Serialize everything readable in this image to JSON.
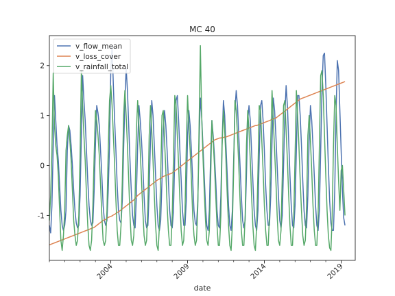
{
  "chart_data": {
    "type": "line",
    "title": "MC 40",
    "xlabel": "date",
    "ylabel": "",
    "x_start": "2000-01",
    "x_end": "2019-12",
    "x_frequency": "monthly",
    "xlim": [
      "2000-01",
      "2019-12"
    ],
    "ylim": [
      -1.9,
      2.6
    ],
    "x_major_ticks": [
      "2004",
      "2009",
      "2014",
      "2019"
    ],
    "y_ticks": [
      -1,
      0,
      1,
      2
    ],
    "y_tick_labels": [
      "-1",
      "0",
      "1",
      "2"
    ],
    "grid": false,
    "legend": {
      "placement": "upper-left"
    },
    "series": [
      {
        "name": "v_flow_mean",
        "color": "#4c72b0",
        "values": [
          -1.2,
          -1.35,
          -0.8,
          0.4,
          1.4,
          0.9,
          0.4,
          0.1,
          -0.4,
          -0.9,
          -1.2,
          -1.3,
          -1.2,
          -0.9,
          0.3,
          0.8,
          0.7,
          0.4,
          0.0,
          -0.5,
          -0.9,
          -1.15,
          -1.25,
          -1.2,
          -0.6,
          0.6,
          1.8,
          1.3,
          0.9,
          0.3,
          -0.3,
          -0.8,
          -1.1,
          -1.2,
          -1.15,
          -0.5,
          0.4,
          1.2,
          1.05,
          0.8,
          0.3,
          -0.2,
          -0.8,
          -1.1,
          -1.2,
          -1.1,
          -0.5,
          0.4,
          1.9,
          2.4,
          1.6,
          0.9,
          0.3,
          -0.4,
          -0.9,
          -1.1,
          -1.15,
          -0.7,
          0.3,
          1.3,
          1.95,
          1.5,
          0.8,
          0.1,
          -0.5,
          -1.0,
          -1.2,
          -1.25,
          -0.6,
          0.4,
          1.2,
          0.9,
          0.5,
          0.0,
          -0.6,
          -1.1,
          -1.25,
          -1.2,
          -0.5,
          0.5,
          1.3,
          1.0,
          0.4,
          -0.2,
          -0.8,
          -1.2,
          -1.3,
          -1.1,
          -0.3,
          0.7,
          1.1,
          0.8,
          0.3,
          -0.3,
          -0.9,
          -1.2,
          -1.25,
          -0.9,
          0.2,
          1.3,
          1.4,
          0.9,
          0.3,
          -0.3,
          -0.9,
          -1.2,
          -1.2,
          -0.7,
          0.6,
          1.1,
          0.8,
          0.3,
          -0.3,
          -0.9,
          -1.15,
          -1.2,
          -0.7,
          0.5,
          1.35,
          1.0,
          0.4,
          -0.2,
          -0.8,
          -1.2,
          -1.3,
          -0.9,
          0.2,
          0.9,
          0.6,
          0.2,
          -0.3,
          -0.9,
          -1.2,
          -1.25,
          -0.6,
          0.5,
          1.3,
          1.0,
          0.4,
          -0.2,
          -0.8,
          -1.2,
          -1.3,
          -0.9,
          0.1,
          1.1,
          1.5,
          1.2,
          0.6,
          0.0,
          -0.6,
          -1.1,
          -1.25,
          -1.1,
          -0.2,
          0.9,
          1.2,
          0.9,
          0.3,
          -0.3,
          -0.9,
          -1.2,
          -1.3,
          -0.9,
          0.2,
          1.2,
          1.3,
          0.9,
          0.3,
          -0.4,
          -0.9,
          -1.2,
          -1.2,
          -0.6,
          0.5,
          1.35,
          1.1,
          0.6,
          0.0,
          -0.6,
          -1.1,
          -1.25,
          -1.0,
          0.0,
          1.0,
          1.6,
          1.2,
          0.5,
          -0.2,
          -0.8,
          -1.2,
          -1.25,
          -0.8,
          0.3,
          1.4,
          1.4,
          1.0,
          0.4,
          -0.3,
          -0.9,
          -1.2,
          -1.25,
          -0.6,
          0.5,
          1.2,
          0.9,
          0.4,
          -0.2,
          -0.8,
          -1.2,
          -1.3,
          -0.9,
          0.3,
          1.5,
          2.2,
          2.25,
          1.6,
          0.8,
          0.0,
          -0.7,
          -1.15,
          -1.3,
          -1.3,
          -0.5,
          1.0,
          2.1,
          1.9,
          1.1,
          0.3,
          -0.5,
          -1.05,
          -1.2
        ]
      },
      {
        "name": "v_loss_cover",
        "color": "#dd8452",
        "values": [
          -1.59,
          -1.58,
          -1.57,
          -1.56,
          -1.55,
          -1.54,
          -1.53,
          -1.52,
          -1.51,
          -1.5,
          -1.49,
          -1.48,
          -1.47,
          -1.46,
          -1.45,
          -1.44,
          -1.43,
          -1.42,
          -1.41,
          -1.4,
          -1.39,
          -1.38,
          -1.37,
          -1.36,
          -1.35,
          -1.34,
          -1.33,
          -1.32,
          -1.31,
          -1.3,
          -1.29,
          -1.28,
          -1.27,
          -1.26,
          -1.25,
          -1.24,
          -1.22,
          -1.2,
          -1.18,
          -1.16,
          -1.14,
          -1.12,
          -1.1,
          -1.09,
          -1.08,
          -1.06,
          -1.04,
          -1.03,
          -1.02,
          -1.01,
          -0.99,
          -0.98,
          -0.96,
          -0.94,
          -0.93,
          -0.91,
          -0.89,
          -0.87,
          -0.85,
          -0.83,
          -0.81,
          -0.79,
          -0.77,
          -0.75,
          -0.73,
          -0.71,
          -0.69,
          -0.66,
          -0.63,
          -0.6,
          -0.58,
          -0.56,
          -0.54,
          -0.52,
          -0.5,
          -0.48,
          -0.46,
          -0.44,
          -0.42,
          -0.4,
          -0.38,
          -0.36,
          -0.34,
          -0.32,
          -0.3,
          -0.28,
          -0.27,
          -0.26,
          -0.24,
          -0.22,
          -0.21,
          -0.2,
          -0.19,
          -0.18,
          -0.17,
          -0.16,
          -0.15,
          -0.13,
          -0.11,
          -0.09,
          -0.07,
          -0.05,
          -0.03,
          -0.01,
          0.01,
          0.03,
          0.05,
          0.07,
          0.09,
          0.11,
          0.13,
          0.15,
          0.17,
          0.19,
          0.21,
          0.23,
          0.25,
          0.27,
          0.29,
          0.31,
          0.33,
          0.35,
          0.37,
          0.39,
          0.41,
          0.43,
          0.45,
          0.47,
          0.49,
          0.51,
          0.52,
          0.53,
          0.54,
          0.55,
          0.55,
          0.56,
          0.56,
          0.57,
          0.57,
          0.58,
          0.59,
          0.6,
          0.61,
          0.62,
          0.63,
          0.64,
          0.65,
          0.66,
          0.67,
          0.68,
          0.69,
          0.7,
          0.71,
          0.72,
          0.73,
          0.74,
          0.75,
          0.76,
          0.77,
          0.78,
          0.79,
          0.8,
          0.8,
          0.81,
          0.82,
          0.83,
          0.84,
          0.85,
          0.86,
          0.87,
          0.88,
          0.89,
          0.9,
          0.91,
          0.92,
          0.93,
          0.94,
          0.95,
          0.97,
          0.99,
          1.01,
          1.03,
          1.05,
          1.07,
          1.09,
          1.11,
          1.13,
          1.15,
          1.17,
          1.19,
          1.21,
          1.23,
          1.25,
          1.27,
          1.29,
          1.31,
          1.33,
          1.34,
          1.35,
          1.36,
          1.37,
          1.38,
          1.39,
          1.4,
          1.41,
          1.42,
          1.43,
          1.44,
          1.45,
          1.46,
          1.47,
          1.48,
          1.49,
          1.5,
          1.51,
          1.52,
          1.53,
          1.54,
          1.55,
          1.56,
          1.57,
          1.58,
          1.59,
          1.6,
          1.61,
          1.62,
          1.63,
          1.64,
          1.65,
          1.66,
          1.67,
          1.68
        ]
      },
      {
        "name": "v_rainfall_total",
        "color": "#55a868",
        "values": [
          -1.1,
          -0.6,
          0.3,
          1.85,
          0.8,
          0.4,
          0.2,
          -0.2,
          -0.9,
          -1.5,
          -1.7,
          -1.4,
          -0.9,
          0.3,
          0.6,
          0.8,
          0.5,
          0.1,
          -0.5,
          -1.1,
          -1.4,
          -1.6,
          -1.5,
          -1.0,
          0.2,
          1.9,
          1.2,
          0.6,
          0.1,
          -0.6,
          -1.2,
          -1.6,
          -1.7,
          -1.5,
          -0.8,
          0.2,
          1.1,
          0.9,
          0.6,
          0.2,
          -0.4,
          -1.0,
          -1.5,
          -1.6,
          -1.5,
          -0.9,
          0.3,
          1.3,
          1.6,
          1.2,
          0.6,
          0.0,
          -0.7,
          -1.3,
          -1.6,
          -1.6,
          -1.2,
          -0.3,
          1.0,
          1.5,
          1.0,
          0.4,
          -0.3,
          -1.0,
          -1.5,
          -1.6,
          -1.4,
          -0.6,
          0.7,
          1.3,
          0.8,
          0.3,
          -0.3,
          -0.9,
          -1.4,
          -1.6,
          -1.5,
          -0.8,
          0.6,
          1.2,
          0.7,
          0.1,
          -0.6,
          -1.2,
          -1.6,
          -1.7,
          -1.2,
          -0.2,
          1.0,
          1.1,
          0.5,
          -0.1,
          -0.8,
          -1.3,
          -1.6,
          -1.6,
          -1.0,
          0.2,
          1.4,
          1.2,
          0.6,
          0.0,
          -0.7,
          -1.3,
          -1.6,
          -1.5,
          -0.9,
          0.4,
          1.4,
          0.8,
          0.3,
          -0.3,
          -1.0,
          -1.4,
          -1.6,
          -1.5,
          -0.8,
          0.8,
          2.4,
          1.0,
          0.2,
          -0.5,
          -1.1,
          -1.5,
          -1.6,
          -1.3,
          -0.3,
          0.9,
          0.5,
          0.0,
          -0.6,
          -1.2,
          -1.6,
          -1.6,
          -1.0,
          0.4,
          1.1,
          0.7,
          0.1,
          -0.6,
          -1.2,
          -1.6,
          -1.7,
          -1.2,
          -0.1,
          1.3,
          1.1,
          0.6,
          0.0,
          -0.7,
          -1.3,
          -1.6,
          -1.6,
          -1.0,
          0.4,
          1.1,
          0.7,
          0.1,
          -0.6,
          -1.2,
          -1.6,
          -1.7,
          -1.2,
          -0.1,
          1.2,
          1.1,
          0.5,
          -0.1,
          -0.8,
          -1.3,
          -1.6,
          -1.6,
          -1.0,
          0.5,
          1.5,
          0.9,
          0.3,
          -0.3,
          -1.0,
          -1.5,
          -1.6,
          -1.3,
          -0.2,
          1.2,
          1.3,
          0.7,
          0.1,
          -0.6,
          -1.2,
          -1.6,
          -1.6,
          -1.0,
          0.2,
          1.5,
          1.0,
          0.4,
          -0.3,
          -0.9,
          -1.4,
          -1.6,
          -1.5,
          -0.8,
          0.6,
          1.0,
          0.5,
          -0.1,
          -0.8,
          -1.3,
          -1.6,
          -1.6,
          -1.0,
          0.4,
          1.8,
          1.9,
          1.4,
          0.6,
          -0.2,
          -0.9,
          -1.4,
          -1.65,
          -1.7,
          -1.0,
          0.4,
          1.4,
          1.2,
          0.4,
          -0.3,
          -0.9,
          -0.1,
          0.0,
          -0.5,
          -1.0
        ]
      }
    ]
  }
}
